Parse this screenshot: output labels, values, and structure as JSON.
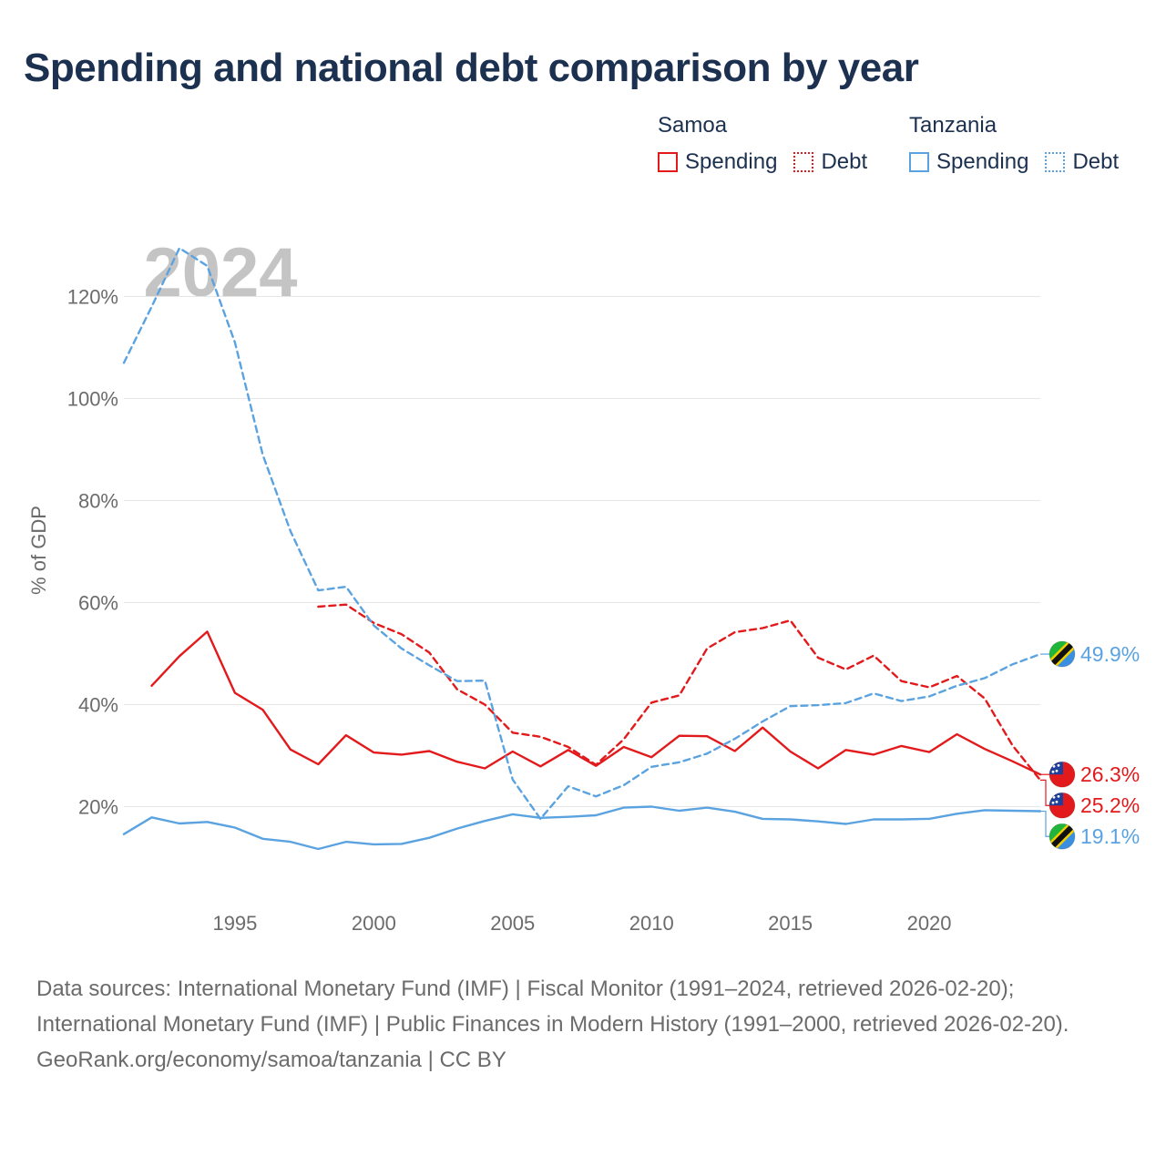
{
  "header": {
    "title": "Spending and national debt comparison by year"
  },
  "legend": {
    "groups": [
      {
        "name": "Samoa",
        "color": "#e31a1c",
        "items": [
          {
            "label": "Spending",
            "style": "solid"
          },
          {
            "label": "Debt",
            "style": "dotted"
          }
        ]
      },
      {
        "name": "Tanzania",
        "color": "#5ba3e0",
        "items": [
          {
            "label": "Spending",
            "style": "solid"
          },
          {
            "label": "Debt",
            "style": "dotted"
          }
        ]
      }
    ]
  },
  "chart_data": {
    "type": "line",
    "title": "Spending and national debt comparison by year",
    "watermark_year": "2024",
    "xlabel": "",
    "ylabel": "% of GDP",
    "xlim": [
      1991,
      2024
    ],
    "ylim": [
      0,
      130
    ],
    "x_ticks": [
      1995,
      2000,
      2005,
      2010,
      2015,
      2020
    ],
    "y_ticks": [
      20,
      40,
      60,
      80,
      100,
      120
    ],
    "y_tick_labels": [
      "20%",
      "40%",
      "60%",
      "80%",
      "100%",
      "120%"
    ],
    "grid": true,
    "series": [
      {
        "name": "Samoa Spending",
        "country": "Samoa",
        "color": "#e31a1c",
        "dash": "solid",
        "x": [
          1992,
          1993,
          1994,
          1995,
          1996,
          1997,
          1998,
          1999,
          2000,
          2001,
          2002,
          2003,
          2004,
          2005,
          2006,
          2007,
          2008,
          2009,
          2010,
          2011,
          2012,
          2013,
          2014,
          2015,
          2016,
          2017,
          2018,
          2019,
          2020,
          2021,
          2022,
          2023,
          2024
        ],
        "y": [
          43.7,
          49.5,
          54.3,
          42.3,
          39.0,
          31.2,
          28.3,
          34.0,
          30.6,
          30.2,
          30.9,
          28.8,
          27.5,
          30.8,
          27.9,
          31.1,
          28.0,
          31.7,
          29.7,
          33.9,
          33.8,
          30.9,
          35.5,
          30.8,
          27.5,
          31.1,
          30.2,
          31.9,
          30.7,
          34.2,
          31.3,
          28.9,
          26.3
        ],
        "end_label": "26.3%"
      },
      {
        "name": "Samoa Debt",
        "country": "Samoa",
        "color": "#e31a1c",
        "dash": "dashed",
        "x": [
          1998,
          1999,
          2000,
          2001,
          2002,
          2003,
          2004,
          2005,
          2006,
          2007,
          2008,
          2009,
          2010,
          2011,
          2012,
          2013,
          2014,
          2015,
          2016,
          2017,
          2018,
          2019,
          2020,
          2021,
          2022,
          2023,
          2024
        ],
        "y": [
          59.2,
          59.6,
          56.0,
          53.8,
          50.2,
          43.0,
          40.0,
          34.5,
          33.7,
          31.7,
          28.2,
          33.2,
          40.4,
          41.8,
          51.0,
          54.2,
          55.0,
          56.5,
          49.2,
          46.9,
          49.6,
          44.6,
          43.4,
          45.6,
          41.2,
          32.0,
          25.2
        ],
        "end_label": "25.2%"
      },
      {
        "name": "Tanzania Spending",
        "country": "Tanzania",
        "color": "#5ba3e0",
        "dash": "solid",
        "x": [
          1991,
          1992,
          1993,
          1994,
          1995,
          1996,
          1997,
          1998,
          1999,
          2000,
          2001,
          2002,
          2003,
          2004,
          2005,
          2006,
          2007,
          2008,
          2009,
          2010,
          2011,
          2012,
          2013,
          2014,
          2015,
          2016,
          2017,
          2018,
          2019,
          2020,
          2021,
          2022,
          2023,
          2024
        ],
        "y": [
          14.6,
          17.9,
          16.7,
          17.0,
          15.9,
          13.7,
          13.1,
          11.7,
          13.1,
          12.6,
          12.7,
          13.9,
          15.7,
          17.2,
          18.5,
          17.8,
          18.0,
          18.3,
          19.8,
          20.0,
          19.2,
          19.8,
          19.0,
          17.6,
          17.5,
          17.1,
          16.6,
          17.5,
          17.5,
          17.6,
          18.6,
          19.3,
          19.2,
          19.1
        ],
        "end_label": "19.1%"
      },
      {
        "name": "Tanzania Debt",
        "country": "Tanzania",
        "color": "#5ba3e0",
        "dash": "dashed",
        "x": [
          1991,
          1992,
          1993,
          1994,
          1995,
          1996,
          1997,
          1998,
          1999,
          2000,
          2001,
          2002,
          2003,
          2004,
          2005,
          2006,
          2007,
          2008,
          2009,
          2010,
          2011,
          2012,
          2013,
          2014,
          2015,
          2016,
          2017,
          2018,
          2019,
          2020,
          2021,
          2022,
          2023,
          2024
        ],
        "y": [
          107.0,
          118.0,
          129.5,
          126.0,
          111.0,
          89.0,
          74.0,
          62.4,
          63.1,
          55.5,
          51.0,
          47.7,
          44.6,
          44.7,
          25.3,
          17.6,
          24.0,
          22.0,
          24.2,
          27.8,
          28.7,
          30.4,
          33.3,
          36.7,
          39.7,
          39.9,
          40.3,
          42.2,
          40.7,
          41.6,
          43.7,
          45.2,
          47.9,
          49.9
        ],
        "end_label": "49.9%"
      }
    ]
  },
  "footer": {
    "sources": "Data sources: International Monetary Fund (IMF) | Fiscal Monitor (1991–2024, retrieved 2026-02-20); International Monetary Fund (IMF) | Public Finances in Modern History (1991–2000, retrieved 2026-02-20).",
    "credit": "GeoRank.org/economy/samoa/tanzania | CC BY"
  }
}
